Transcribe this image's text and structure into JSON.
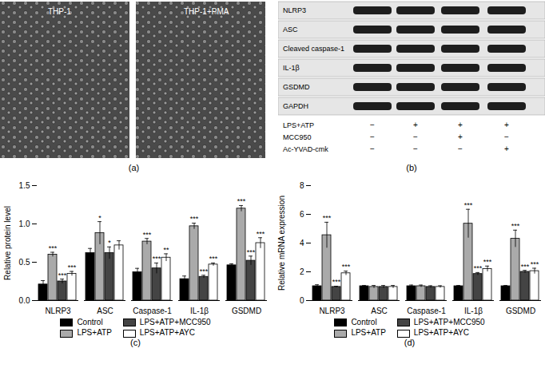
{
  "panel_a": {
    "label": "(a)",
    "images": [
      "THP-1",
      "THP-1+PMA"
    ]
  },
  "panel_b": {
    "label": "(b)",
    "blots": [
      "NLRP3",
      "ASC",
      "Cleaved caspase-1",
      "IL-1β",
      "GSDMD",
      "GAPDH"
    ],
    "treatments": [
      {
        "name": "LPS+ATP",
        "signs": [
          "−",
          "+",
          "+",
          "+"
        ]
      },
      {
        "name": "MCC950",
        "signs": [
          "−",
          "−",
          "+",
          "−"
        ]
      },
      {
        "name": "Ac-YVAD-cmk",
        "signs": [
          "−",
          "−",
          "−",
          "+"
        ]
      }
    ]
  },
  "chart_data": [
    {
      "type": "bar",
      "title": "(c)",
      "y_label": "Relative protein level",
      "categories": [
        "NLRP3",
        "ASC",
        "Caspase-1",
        "IL-1β",
        "GSDMD"
      ],
      "series": [
        {
          "name": "Control",
          "color": "#000000",
          "values": [
            0.21,
            0.62,
            0.37,
            0.28,
            0.46
          ],
          "errors": [
            0.05,
            0.06,
            0.05,
            0.04,
            0.02
          ],
          "annotations": [
            null,
            null,
            null,
            null,
            null
          ]
        },
        {
          "name": "LPS+ATP",
          "color": "#aaaaaa",
          "values": [
            0.6,
            0.88,
            0.77,
            0.97,
            1.2
          ],
          "errors": [
            0.03,
            0.15,
            0.04,
            0.04,
            0.04
          ],
          "annotations": [
            "***",
            "*",
            "***",
            "***",
            "***"
          ]
        },
        {
          "name": "LPS+ATP+MCC950",
          "color": "#444444",
          "values": [
            0.25,
            0.62,
            0.42,
            0.31,
            0.52
          ],
          "errors": [
            0.03,
            0.08,
            0.07,
            0.02,
            0.06
          ],
          "annotations": [
            "***",
            "*",
            "***",
            "***",
            "***"
          ]
        },
        {
          "name": "LPS+ATP+AYC",
          "color": "#ffffff",
          "values": [
            0.35,
            0.72,
            0.56,
            0.47,
            0.75
          ],
          "errors": [
            0.03,
            0.06,
            0.05,
            0.02,
            0.07
          ],
          "annotations": [
            "***",
            null,
            "**",
            "***",
            "***"
          ]
        }
      ],
      "ylim": [
        0,
        1.5
      ],
      "yticks": [
        {
          "value": 0,
          "label": "0.0"
        },
        0.5,
        {
          "value": 1,
          "label": "1.0"
        },
        1.5
      ],
      "grid": false,
      "legend": "bottom"
    },
    {
      "type": "bar",
      "title": "(d)",
      "y_label": "Relative mRNA expression",
      "categories": [
        "NLRP3",
        "ASC",
        "Caspase-1",
        "IL-1β",
        "GSDMD"
      ],
      "series": [
        {
          "name": "Control",
          "color": "#000000",
          "values": [
            1.0,
            1.0,
            1.0,
            1.0,
            1.0
          ],
          "errors": [
            0.1,
            0.05,
            0.08,
            0.05,
            0.05
          ],
          "annotations": [
            null,
            null,
            null,
            null,
            null
          ]
        },
        {
          "name": "LPS+ATP",
          "color": "#aaaaaa",
          "values": [
            4.55,
            0.95,
            1.0,
            5.35,
            4.3
          ],
          "errors": [
            0.9,
            0.1,
            0.08,
            1.0,
            0.6
          ],
          "annotations": [
            "***",
            null,
            null,
            "***",
            "***"
          ]
        },
        {
          "name": "LPS+ATP+MCC950",
          "color": "#444444",
          "values": [
            0.95,
            0.95,
            0.95,
            1.85,
            2.0
          ],
          "errors": [
            0.05,
            0.1,
            0.08,
            0.1,
            0.1
          ],
          "annotations": [
            "***",
            null,
            null,
            "***",
            "***"
          ]
        },
        {
          "name": "LPS+ATP+AYC",
          "color": "#ffffff",
          "values": [
            1.9,
            0.95,
            0.95,
            2.2,
            2.05
          ],
          "errors": [
            0.15,
            0.1,
            0.08,
            0.2,
            0.2
          ],
          "annotations": [
            "***",
            null,
            null,
            "***",
            "***"
          ]
        }
      ],
      "ylim": [
        0,
        8
      ],
      "yticks": [
        0,
        2,
        4,
        6,
        8
      ],
      "grid": false,
      "legend": "bottom"
    }
  ]
}
